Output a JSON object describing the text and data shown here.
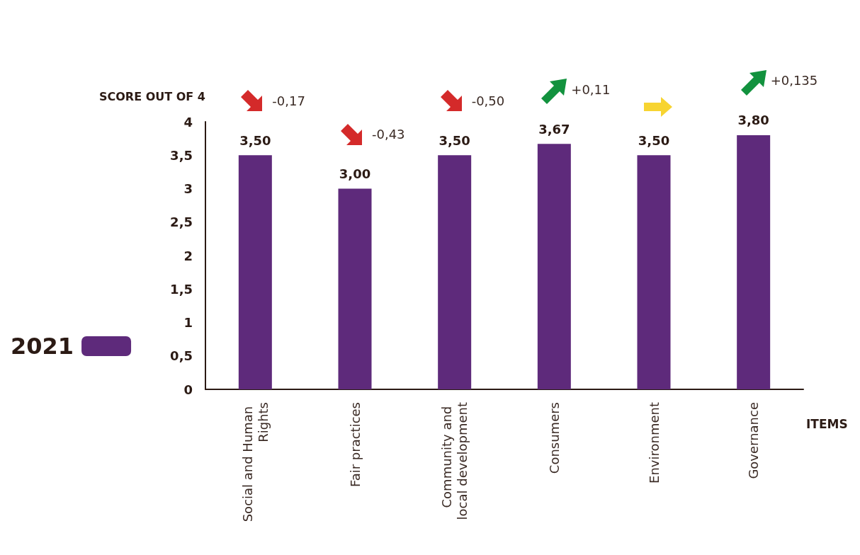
{
  "chart_data": {
    "type": "bar",
    "xlabel": "ITEMS",
    "ylabel": "SCORE OUT OF 4",
    "categories": [
      "Social and Human Rights",
      "Fair practices",
      "Community and local development",
      "Consumers",
      "Environment",
      "Governance"
    ],
    "series": [
      {
        "name": "2021",
        "color": "#5e2a7b",
        "values": [
          3.5,
          3.0,
          3.5,
          3.67,
          3.5,
          3.8
        ],
        "value_labels": [
          "3,50",
          "3,00",
          "3,50",
          "3,67",
          "3,50",
          "3,80"
        ]
      }
    ],
    "ylim": [
      0,
      4
    ],
    "yticks": [
      0,
      {
        "value": 0.5,
        "label": "0,5"
      },
      1,
      {
        "value": 1.5,
        "label": "1,5"
      },
      2,
      {
        "value": 2.5,
        "label": "2,5"
      },
      3,
      {
        "value": 3.5,
        "label": "3,5"
      },
      4
    ],
    "annotations": [
      "-0,17",
      "-0,43",
      "-0,50",
      "+0,11",
      "+0,135"
    ],
    "grid": false,
    "legend": "left"
  }
}
